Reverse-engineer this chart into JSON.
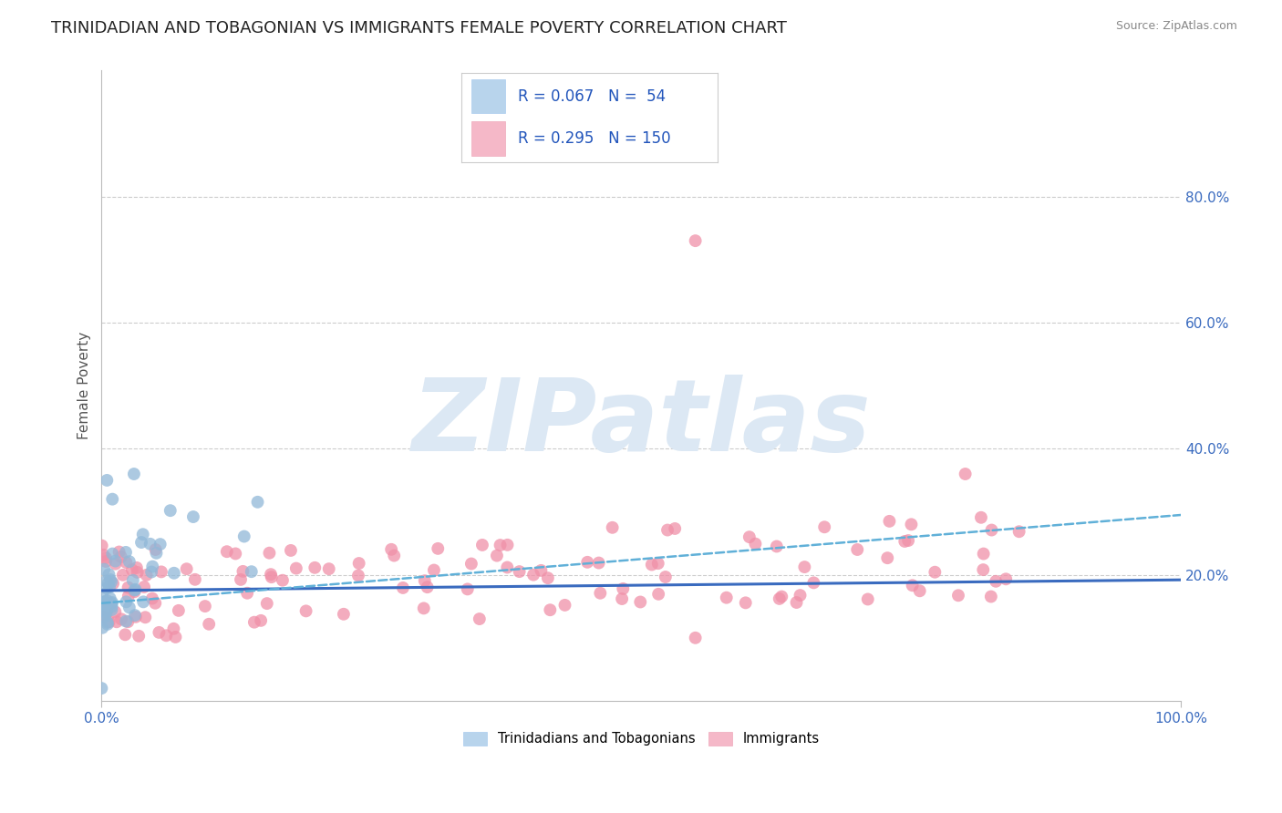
{
  "title": "TRINIDADIAN AND TOBAGONIAN VS IMMIGRANTS FEMALE POVERTY CORRELATION CHART",
  "source": "Source: ZipAtlas.com",
  "ylabel": "Female Poverty",
  "legend_label_blue": "Trinidadians and Tobagonians",
  "legend_label_pink": "Immigrants",
  "blue_R": 0.067,
  "blue_N": 54,
  "pink_R": 0.295,
  "pink_N": 150,
  "blue_legend_color": "#b8d4ec",
  "pink_legend_color": "#f5b8c8",
  "blue_line_color": "#3a6bbf",
  "pink_line_color": "#e04070",
  "blue_scatter_color": "#90b8d8",
  "pink_scatter_color": "#f090a8",
  "background_color": "#ffffff",
  "grid_color": "#cccccc",
  "watermark_color": "#dce8f4",
  "title_fontsize": 13,
  "axis_label_fontsize": 11,
  "tick_fontsize": 11,
  "xlim": [
    0.0,
    1.0
  ],
  "ylim": [
    0.0,
    1.0
  ],
  "right_yticks": [
    0.2,
    0.4,
    0.6,
    0.8
  ],
  "right_yticklabels": [
    "20.0%",
    "40.0%",
    "60.0%",
    "80.0%"
  ],
  "horizontal_gridlines": [
    0.2,
    0.4,
    0.6,
    0.8
  ],
  "xticklabels_show": [
    "0.0%",
    "100.0%"
  ],
  "xticklabels_pos": [
    0.0,
    1.0
  ]
}
